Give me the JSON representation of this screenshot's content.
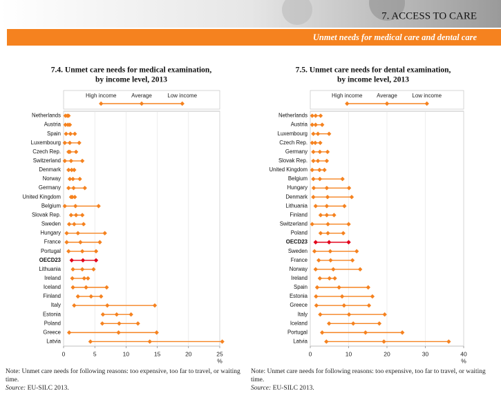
{
  "header": {
    "section": "7. ACCESS TO CARE",
    "subtitle": "Unmet needs for medical care and dental care"
  },
  "chart_data": [
    {
      "type": "dumbbell",
      "title": [
        "7.4. Unmet care needs for medical examination,",
        "by income level, 2013"
      ],
      "xlabel": "%",
      "categories": [
        "Netherlands",
        "Austria",
        "Spain",
        "Luxembourg",
        "Czech Rep.",
        "Switzerland",
        "Denmark",
        "Norway",
        "Germany",
        "United Kingdom",
        "Belgium",
        "Slovak Rep.",
        "Sweden",
        "Hungary",
        "France",
        "Portugal",
        "OECD23",
        "Lithuania",
        "Ireland",
        "Iceland",
        "Finland",
        "Italy",
        "Estonia",
        "Poland",
        "Greece",
        "Latvia"
      ],
      "series": [
        {
          "name": "High income",
          "color": "#f5821f",
          "values": [
            0.3,
            0.3,
            0.4,
            0.2,
            0.8,
            0.2,
            0.8,
            1.0,
            0.8,
            1.2,
            0.2,
            1.2,
            0.9,
            0.5,
            0.5,
            0.8,
            1.3,
            1.5,
            1.4,
            1.5,
            2.3,
            1.7,
            6.3,
            6.2,
            0.9,
            4.3
          ]
        },
        {
          "name": "Average",
          "color": "#f5821f",
          "values": [
            0.6,
            0.7,
            1.1,
            1.0,
            1.0,
            1.2,
            1.3,
            1.5,
            1.6,
            1.4,
            1.9,
            2.0,
            1.7,
            2.3,
            2.7,
            3.0,
            3.1,
            3.0,
            3.3,
            3.6,
            4.4,
            7.0,
            8.5,
            8.9,
            8.8,
            13.8
          ]
        },
        {
          "name": "Low income",
          "color": "#f5821f",
          "values": [
            0.8,
            1.0,
            1.8,
            2.5,
            2.0,
            3.0,
            1.7,
            2.6,
            3.4,
            1.8,
            5.6,
            3.0,
            3.2,
            6.6,
            5.8,
            5.2,
            5.2,
            4.8,
            3.9,
            6.9,
            6.0,
            14.6,
            10.8,
            11.9,
            14.9,
            25.4
          ]
        }
      ],
      "highlight": "OECD23",
      "highlight_color": "#e2001a",
      "xlim": [
        0,
        25
      ],
      "xticks": [
        0,
        5,
        10,
        15,
        20,
        25
      ],
      "grid": true
    },
    {
      "type": "dumbbell",
      "title": [
        "7.5. Unmet care needs for dental examination,",
        "by income level, 2013"
      ],
      "xlabel": "%",
      "categories": [
        "Netherlands",
        "Austria",
        "Luxembourg",
        "Czech Rep.",
        "Germany",
        "Slovak Rep.",
        "United Kingdom",
        "Belgium",
        "Hungary",
        "Denmark",
        "Lithuania",
        "Finland",
        "Switzerland",
        "Poland",
        "OECD23",
        "Sweden",
        "France",
        "Norway",
        "Ireland",
        "Spain",
        "Estonia",
        "Greece",
        "Italy",
        "Iceland",
        "Portugal",
        "Latvia"
      ],
      "series": [
        {
          "name": "High income",
          "color": "#f5821f",
          "values": [
            0.5,
            0.5,
            0.8,
            0.5,
            0.8,
            0.8,
            0.5,
            0.8,
            0.9,
            0.8,
            1.4,
            2.7,
            0.5,
            2.7,
            1.4,
            1.1,
            2.2,
            1.4,
            2.5,
            1.8,
            1.5,
            1.6,
            2.6,
            4.9,
            3.1,
            4.2
          ]
        },
        {
          "name": "Average",
          "color": "#f5821f",
          "values": [
            1.4,
            1.4,
            2.0,
            1.3,
            2.5,
            2.0,
            2.4,
            2.5,
            4.3,
            4.5,
            4.3,
            4.3,
            4.6,
            4.6,
            4.9,
            5.2,
            5.3,
            6.0,
            5.0,
            7.5,
            8.3,
            8.8,
            10.1,
            11.2,
            14.4,
            19.2
          ]
        },
        {
          "name": "Low income",
          "color": "#f5821f",
          "values": [
            2.7,
            3.1,
            4.9,
            2.6,
            4.5,
            4.3,
            3.7,
            8.4,
            10.1,
            10.8,
            8.9,
            6.2,
            10.0,
            8.6,
            10.0,
            12.1,
            11.0,
            13.0,
            6.4,
            15.1,
            16.2,
            15.3,
            19.4,
            18.0,
            24.0,
            36.1
          ]
        }
      ],
      "highlight": "OECD23",
      "highlight_color": "#e2001a",
      "xlim": [
        0,
        40
      ],
      "xticks": [
        0,
        10,
        20,
        30,
        40
      ],
      "grid": true
    }
  ],
  "notes": [
    {
      "text": "Note: Unmet care needs for following reasons: too expensive, too far to travel, or waiting time.",
      "source_label": "Source:",
      "source": "EU-SILC 2013."
    },
    {
      "text": "Note: Unmet care needs for following reasons: too expensive, too far to travel, or waiting time.",
      "source_label": "Source:",
      "source": "EU-SILC 2013."
    }
  ]
}
